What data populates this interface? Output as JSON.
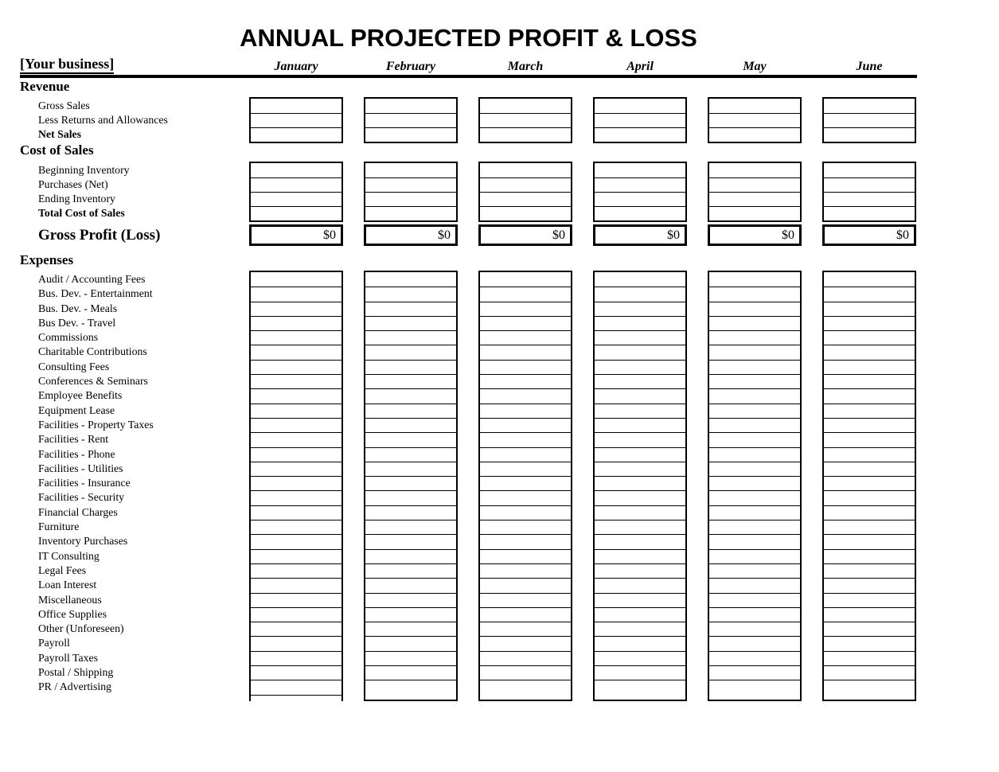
{
  "title": "ANNUAL PROJECTED PROFIT & LOSS",
  "business_label": "[Your business]",
  "months": [
    "January",
    "February",
    "March",
    "April",
    "May",
    "June"
  ],
  "cells": {
    "empty_value": ""
  },
  "colors": {
    "ink": "#000000",
    "paper": "#ffffff"
  },
  "revenue": {
    "heading": "Revenue",
    "rows": [
      {
        "label": "Gross Sales",
        "bold": false
      },
      {
        "label": "Less Returns and Allowances",
        "bold": false
      },
      {
        "label": "Net Sales",
        "bold": true
      }
    ]
  },
  "cost_of_sales": {
    "heading": "Cost of Sales",
    "rows": [
      {
        "label": "Beginning Inventory",
        "bold": false
      },
      {
        "label": "Purchases (Net)",
        "bold": false
      },
      {
        "label": "Ending Inventory",
        "bold": false
      },
      {
        "label": "Total Cost of Sales",
        "bold": true
      }
    ]
  },
  "gross_profit": {
    "label": "Gross Profit (Loss)",
    "values": [
      "$0",
      "$0",
      "$0",
      "$0",
      "$0",
      "$0"
    ]
  },
  "expenses": {
    "heading": "Expenses",
    "rows": [
      {
        "label": "Audit / Accounting Fees",
        "bold": false
      },
      {
        "label": "Bus. Dev. - Entertainment",
        "bold": false
      },
      {
        "label": "Bus. Dev. - Meals",
        "bold": false
      },
      {
        "label": "Bus Dev. - Travel",
        "bold": false
      },
      {
        "label": "Commissions",
        "bold": false
      },
      {
        "label": "Charitable Contributions",
        "bold": false
      },
      {
        "label": "Consulting Fees",
        "bold": false
      },
      {
        "label": "Conferences & Seminars",
        "bold": false
      },
      {
        "label": "Employee Benefits",
        "bold": false
      },
      {
        "label": "Equipment Lease",
        "bold": false
      },
      {
        "label": "Facilities - Property Taxes",
        "bold": false
      },
      {
        "label": "Facilities - Rent",
        "bold": false
      },
      {
        "label": "Facilities - Phone",
        "bold": false
      },
      {
        "label": "Facilities - Utilities",
        "bold": false
      },
      {
        "label": "Facilities - Insurance",
        "bold": false
      },
      {
        "label": "Facilities - Security",
        "bold": false
      },
      {
        "label": "Financial Charges",
        "bold": false
      },
      {
        "label": "Furniture",
        "bold": false
      },
      {
        "label": "Inventory Purchases",
        "bold": false
      },
      {
        "label": "IT Consulting",
        "bold": false
      },
      {
        "label": "Legal Fees",
        "bold": false
      },
      {
        "label": "Loan Interest",
        "bold": false
      },
      {
        "label": "Miscellaneous",
        "bold": false
      },
      {
        "label": "Office Supplies",
        "bold": false
      },
      {
        "label": "Other (Unforeseen)",
        "bold": false
      },
      {
        "label": "Payroll",
        "bold": false
      },
      {
        "label": "Payroll Taxes",
        "bold": false
      },
      {
        "label": "Postal / Shipping",
        "bold": false
      },
      {
        "label": "PR / Advertising",
        "bold": false
      }
    ]
  }
}
